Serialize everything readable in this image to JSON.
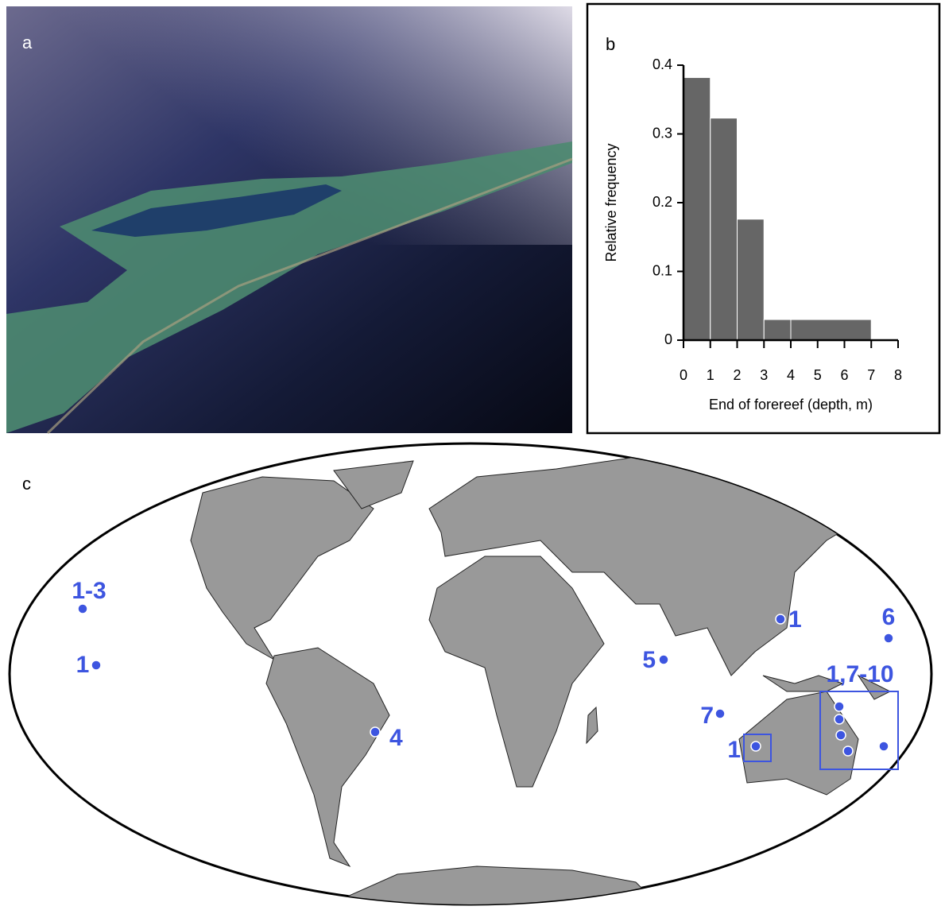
{
  "photo": {
    "label": "a"
  },
  "chart_data": {
    "type": "histogram",
    "panel_label": "b",
    "bins": [
      0,
      1,
      2,
      3,
      4,
      7
    ],
    "values": [
      0.382,
      0.323,
      0.176,
      0.03,
      0.03
    ],
    "color": "#666666",
    "xlabel": "End of forereef (depth, m)",
    "ylabel": "Relative frequency",
    "xlim": [
      0,
      8
    ],
    "xticks": [
      0,
      1,
      2,
      3,
      4,
      5,
      6,
      7,
      8
    ],
    "ylim": [
      0,
      0.4
    ],
    "yticks": [
      0,
      0.1,
      0.2,
      0.3,
      0.4
    ]
  },
  "map": {
    "label": "c",
    "sites": [
      "1-3",
      "1",
      "4",
      "5",
      "7",
      "1",
      "1",
      "6",
      "1,7-10"
    ]
  }
}
